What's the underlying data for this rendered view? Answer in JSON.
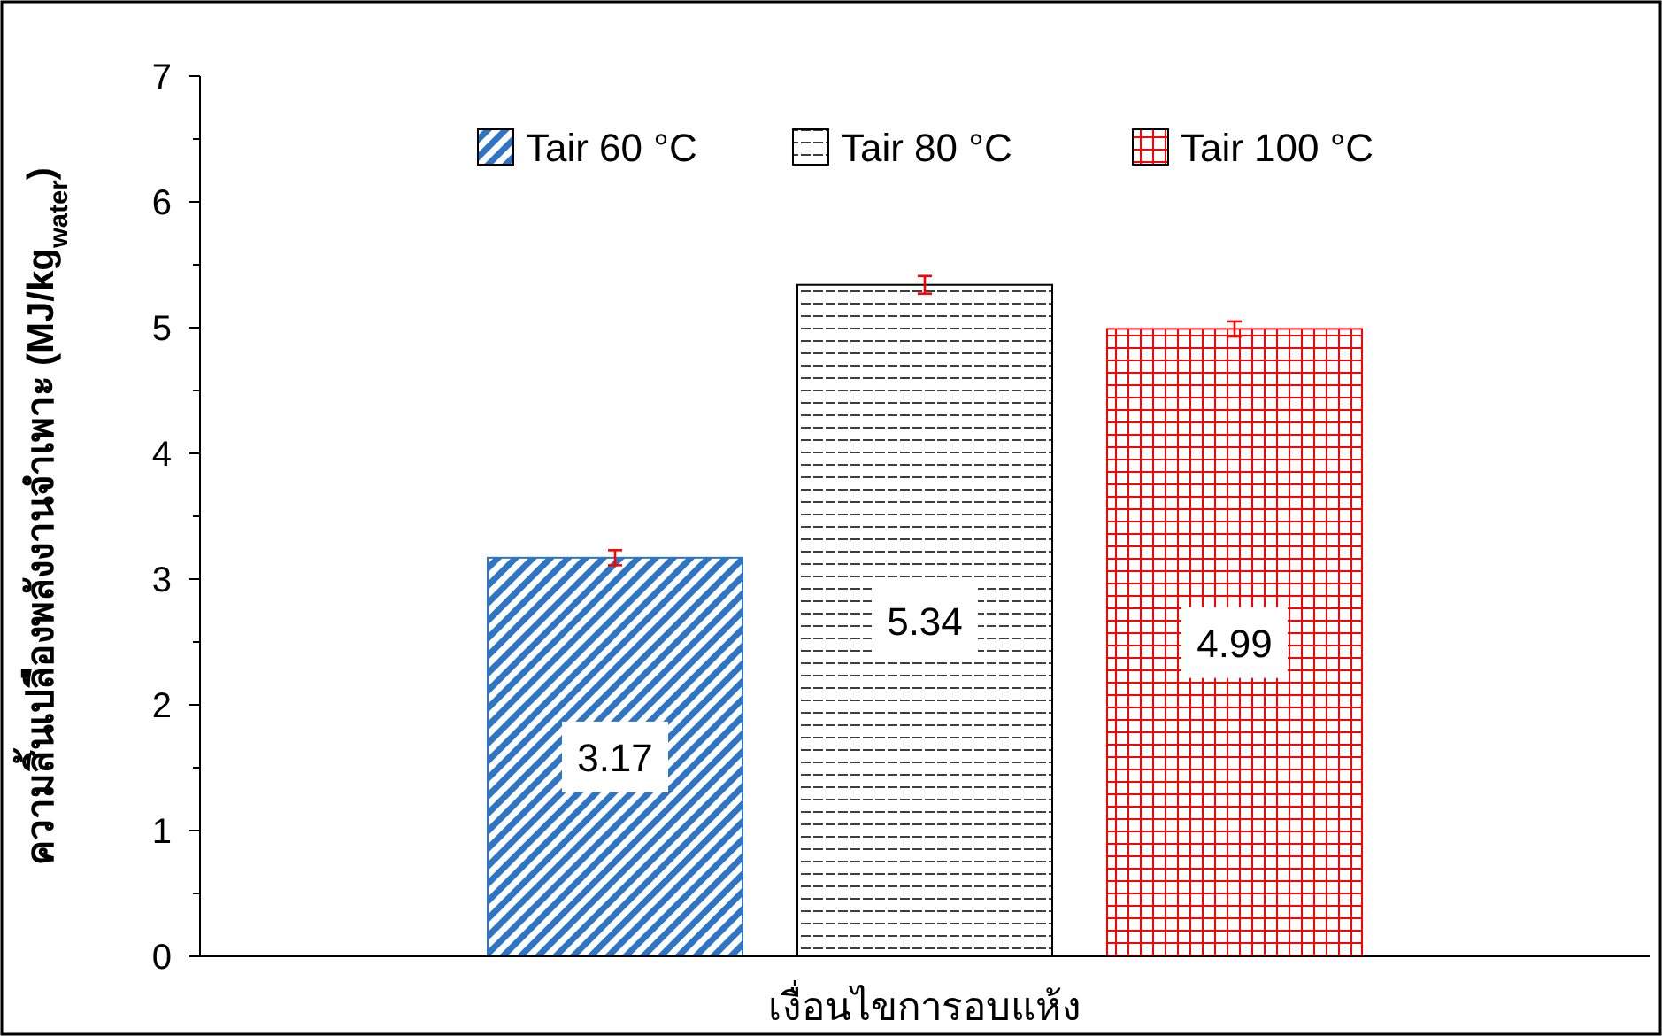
{
  "chart_data": {
    "type": "bar",
    "xlabel": "เงื่อนไขการอบแห้ง",
    "ylabel": "ความสิ้นเปลืองพลังงานจำเพาะ (MJ/kg$_{water}$)",
    "categories": [
      null
    ],
    "series": [
      {
        "name": "Tair 60 °C",
        "color": "#2e75c6",
        "values": [
          3.17
        ],
        "errors": [
          0.06
        ]
      },
      {
        "name": "Tair 80 °C",
        "color": "#000000",
        "values": [
          5.34
        ],
        "errors": [
          0.07
        ]
      },
      {
        "name": "Tair 100 °C",
        "color": "#ff0000",
        "values": [
          4.99
        ],
        "errors": [
          0.06
        ]
      }
    ],
    "ylim": [
      0,
      7
    ],
    "yticks": [
      0,
      1,
      2,
      3,
      4,
      5,
      6,
      7
    ],
    "data_labels": true,
    "legend": "top",
    "grid": false
  }
}
